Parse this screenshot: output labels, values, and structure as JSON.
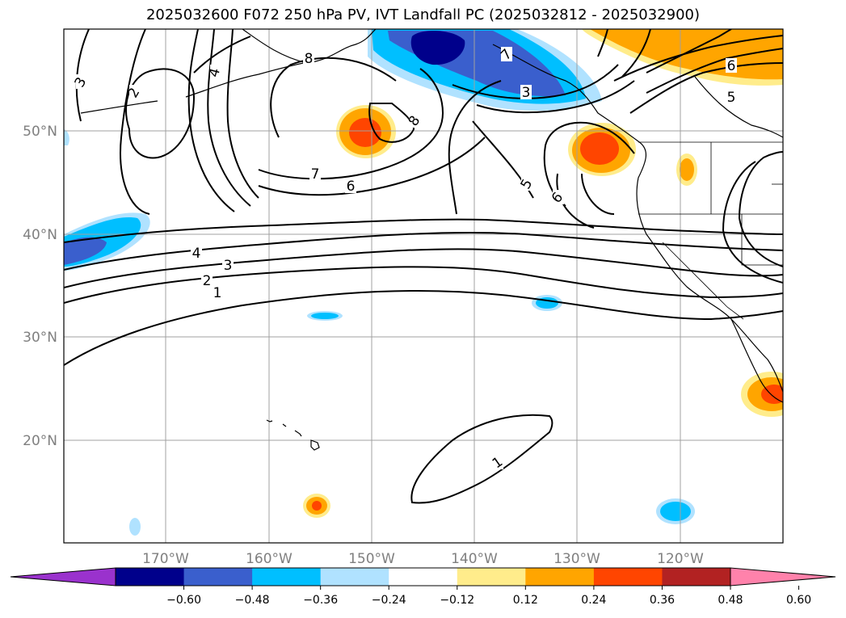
{
  "title": "2025032600 F072 250 hPa PV, IVT Landfall PC (2025032812 - 2025032900)",
  "map": {
    "lat_labels": [
      "50°N",
      "40°N",
      "30°N",
      "20°N"
    ],
    "lon_labels": [
      "170°W",
      "160°W",
      "150°W",
      "140°W",
      "130°W",
      "120°W"
    ],
    "contour_labels": [
      "3",
      "2",
      "4",
      "8",
      "8",
      "7",
      "6",
      "5",
      "6",
      "7",
      "3",
      "6",
      "5",
      "4",
      "3",
      "2",
      "1",
      "1"
    ]
  },
  "colorbar": {
    "ticks": [
      "−0.60",
      "−0.48",
      "−0.36",
      "−0.24",
      "−0.12",
      "0.12",
      "0.24",
      "0.36",
      "0.48",
      "0.60"
    ],
    "colors": [
      "#9a32cd",
      "#00008b",
      "#3a5fcd",
      "#00bfff",
      "#b0e2ff",
      "#ffffff",
      "#ffec8b",
      "#ffa500",
      "#ff4500",
      "#b22222",
      "#ff82ab"
    ]
  }
}
